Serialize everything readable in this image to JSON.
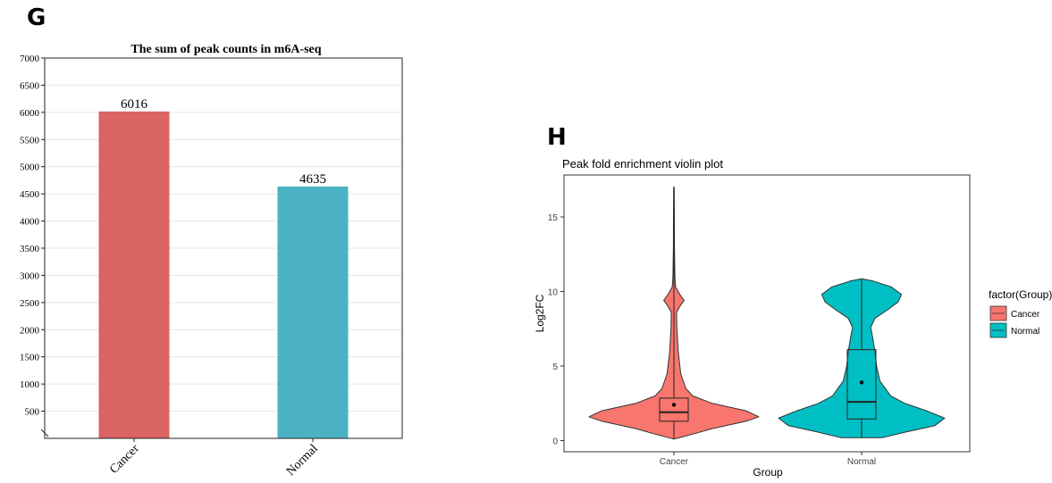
{
  "panel_letters": {
    "left": "G",
    "right": "H"
  },
  "chart_data": [
    {
      "type": "bar",
      "title": "The sum of peak counts in m6A-seq",
      "categories": [
        "Cancer",
        "Normal"
      ],
      "values": [
        6016,
        4635
      ],
      "data_labels": [
        "6016",
        "4635"
      ],
      "colors": [
        "#DB6464",
        "#4BB2C4"
      ],
      "ylim": [
        0,
        7000
      ],
      "yticks": [
        500,
        1000,
        1500,
        2000,
        2500,
        3000,
        3500,
        4000,
        4500,
        5000,
        5500,
        6000,
        6500,
        7000
      ],
      "grid": true,
      "axis_break": true
    },
    {
      "type": "violin",
      "title": "Peak fold enrichment violin plot",
      "xlabel": "Group",
      "ylabel": "Log2FC",
      "categories": [
        "Cancer",
        "Normal"
      ],
      "ylim": [
        0,
        17.5
      ],
      "yticks": [
        0,
        5,
        10,
        15
      ],
      "legend": {
        "title": "factor(Group)",
        "position": "right",
        "entries": [
          {
            "label": "Cancer",
            "color": "#F8766D"
          },
          {
            "label": "Normal",
            "color": "#00BFC4"
          }
        ]
      },
      "series": [
        {
          "category": "Cancer",
          "color": "#F8766D",
          "box": {
            "q1": 1.3,
            "median": 1.9,
            "q3": 2.85,
            "whisker_low": 0.1,
            "whisker_high": 17.0,
            "mean": 2.4
          },
          "density_profile": [
            [
              0.1,
              0.0
            ],
            [
              0.4,
              0.2
            ],
            [
              0.8,
              0.45
            ],
            [
              1.3,
              0.85
            ],
            [
              1.6,
              1.0
            ],
            [
              2.0,
              0.85
            ],
            [
              2.5,
              0.45
            ],
            [
              3.0,
              0.22
            ],
            [
              3.5,
              0.14
            ],
            [
              4.5,
              0.08
            ],
            [
              6.0,
              0.05
            ],
            [
              7.5,
              0.035
            ],
            [
              8.6,
              0.03
            ],
            [
              9.0,
              0.07
            ],
            [
              9.4,
              0.12
            ],
            [
              9.8,
              0.07
            ],
            [
              10.3,
              0.02
            ],
            [
              11.0,
              0.012
            ],
            [
              13.0,
              0.006
            ],
            [
              15.0,
              0.005
            ],
            [
              17.0,
              0.003
            ]
          ]
        },
        {
          "category": "Normal",
          "color": "#00BFC4",
          "box": {
            "q1": 1.45,
            "median": 2.6,
            "q3": 6.1,
            "whisker_low": 0.2,
            "whisker_high": 10.8,
            "mean": 3.9
          },
          "density_profile": [
            [
              0.2,
              0.25
            ],
            [
              0.6,
              0.55
            ],
            [
              1.0,
              0.88
            ],
            [
              1.5,
              1.0
            ],
            [
              2.0,
              0.78
            ],
            [
              2.5,
              0.52
            ],
            [
              3.0,
              0.35
            ],
            [
              4.0,
              0.22
            ],
            [
              5.0,
              0.18
            ],
            [
              6.0,
              0.16
            ],
            [
              7.0,
              0.13
            ],
            [
              7.6,
              0.11
            ],
            [
              8.2,
              0.16
            ],
            [
              8.8,
              0.32
            ],
            [
              9.3,
              0.44
            ],
            [
              9.8,
              0.48
            ],
            [
              10.3,
              0.36
            ],
            [
              10.7,
              0.14
            ],
            [
              10.85,
              0.0
            ]
          ]
        }
      ]
    }
  ]
}
